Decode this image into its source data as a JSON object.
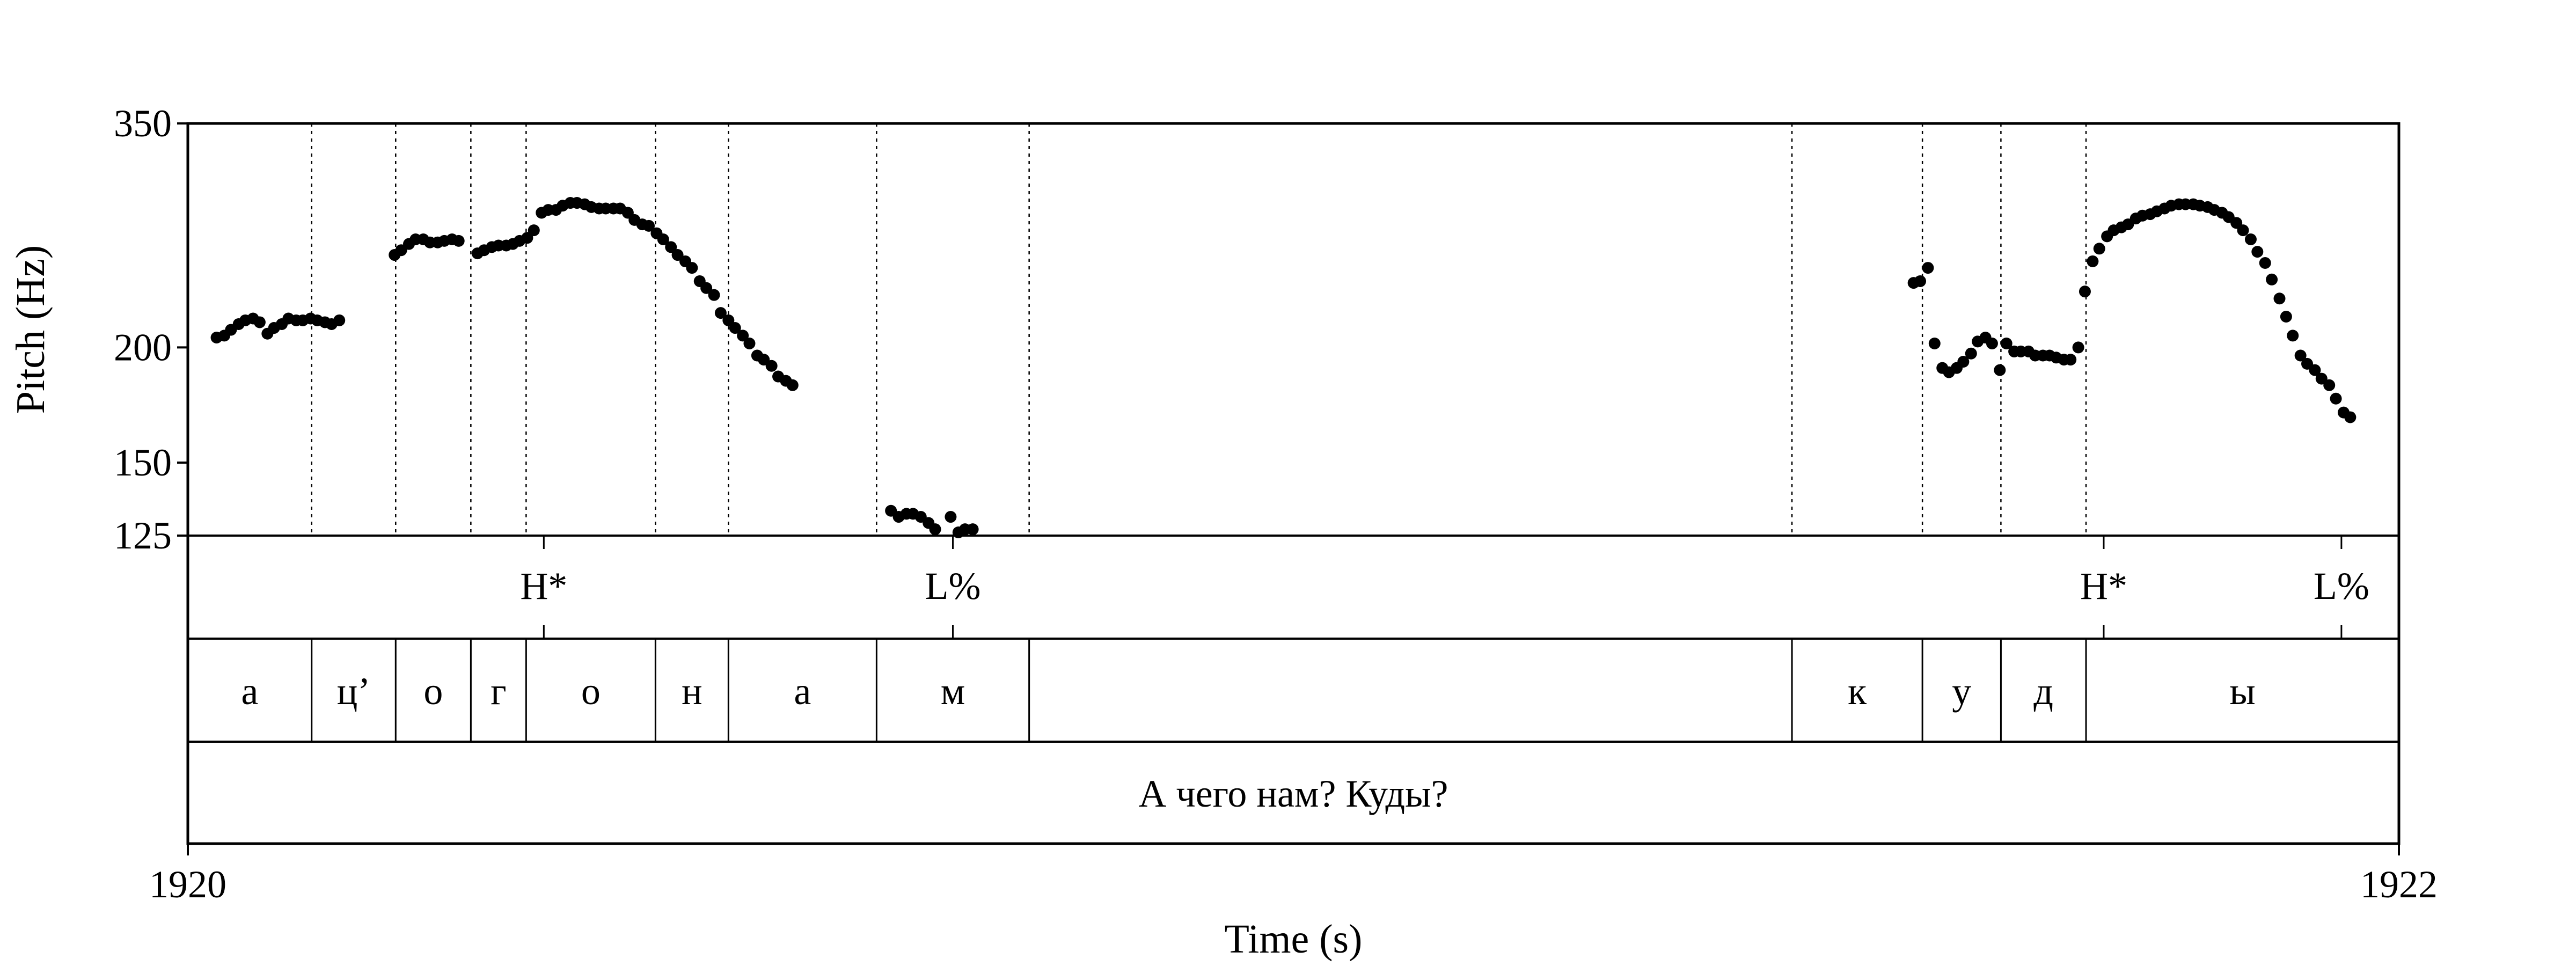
{
  "chart_data": {
    "type": "scatter",
    "xlabel": "Time (s)",
    "ylabel": "Pitch (Hz)",
    "xlim": [
      1920,
      1922
    ],
    "ylim": [
      125,
      350
    ],
    "y_scale": "log",
    "x_ticks": [
      "1920",
      "1922"
    ],
    "y_ticks": [
      125,
      150,
      200,
      350
    ],
    "marker_color": "#000000",
    "pitch_points": [
      [
        1920.026,
        205
      ],
      [
        1920.033,
        206
      ],
      [
        1920.039,
        209
      ],
      [
        1920.046,
        212
      ],
      [
        1920.052,
        214
      ],
      [
        1920.059,
        215
      ],
      [
        1920.065,
        213
      ],
      [
        1920.072,
        207
      ],
      [
        1920.078,
        210
      ],
      [
        1920.085,
        212
      ],
      [
        1920.091,
        215
      ],
      [
        1920.098,
        214
      ],
      [
        1920.104,
        214
      ],
      [
        1920.111,
        215
      ],
      [
        1920.117,
        214
      ],
      [
        1920.124,
        213
      ],
      [
        1920.13,
        212
      ],
      [
        1920.137,
        214
      ],
      [
        1920.187,
        252
      ],
      [
        1920.193,
        255
      ],
      [
        1920.2,
        259
      ],
      [
        1920.206,
        262
      ],
      [
        1920.213,
        262
      ],
      [
        1920.219,
        260
      ],
      [
        1920.226,
        260
      ],
      [
        1920.232,
        261
      ],
      [
        1920.239,
        262
      ],
      [
        1920.245,
        261
      ],
      [
        1920.262,
        253
      ],
      [
        1920.268,
        255
      ],
      [
        1920.275,
        257
      ],
      [
        1920.281,
        258
      ],
      [
        1920.288,
        258
      ],
      [
        1920.294,
        259
      ],
      [
        1920.3,
        261
      ],
      [
        1920.307,
        263
      ],
      [
        1920.313,
        268
      ],
      [
        1920.32,
        280
      ],
      [
        1920.326,
        282
      ],
      [
        1920.333,
        282
      ],
      [
        1920.339,
        285
      ],
      [
        1920.346,
        287
      ],
      [
        1920.352,
        287
      ],
      [
        1920.359,
        286
      ],
      [
        1920.365,
        284
      ],
      [
        1920.372,
        283
      ],
      [
        1920.378,
        283
      ],
      [
        1920.385,
        283
      ],
      [
        1920.391,
        283
      ],
      [
        1920.398,
        280
      ],
      [
        1920.404,
        275
      ],
      [
        1920.411,
        272
      ],
      [
        1920.417,
        271
      ],
      [
        1920.424,
        266
      ],
      [
        1920.43,
        262
      ],
      [
        1920.437,
        257
      ],
      [
        1920.443,
        252
      ],
      [
        1920.45,
        248
      ],
      [
        1920.456,
        244
      ],
      [
        1920.463,
        236
      ],
      [
        1920.469,
        232
      ],
      [
        1920.476,
        228
      ],
      [
        1920.482,
        218
      ],
      [
        1920.489,
        214
      ],
      [
        1920.495,
        210
      ],
      [
        1920.502,
        206
      ],
      [
        1920.508,
        202
      ],
      [
        1920.515,
        196
      ],
      [
        1920.521,
        194
      ],
      [
        1920.528,
        191
      ],
      [
        1920.534,
        186
      ],
      [
        1920.541,
        184
      ],
      [
        1920.547,
        182
      ],
      [
        1920.636,
        133
      ],
      [
        1920.643,
        131
      ],
      [
        1920.65,
        132
      ],
      [
        1920.656,
        132
      ],
      [
        1920.663,
        131
      ],
      [
        1920.67,
        129
      ],
      [
        1920.676,
        127
      ],
      [
        1920.69,
        131
      ],
      [
        1920.697,
        126
      ],
      [
        1920.703,
        127
      ],
      [
        1920.71,
        127
      ],
      [
        1921.561,
        235
      ],
      [
        1921.567,
        236
      ],
      [
        1921.574,
        244
      ],
      [
        1921.58,
        202
      ],
      [
        1921.587,
        190
      ],
      [
        1921.593,
        188
      ],
      [
        1921.6,
        190
      ],
      [
        1921.606,
        193
      ],
      [
        1921.613,
        197
      ],
      [
        1921.619,
        203
      ],
      [
        1921.626,
        205
      ],
      [
        1921.632,
        202
      ],
      [
        1921.639,
        189
      ],
      [
        1921.645,
        202
      ],
      [
        1921.652,
        198
      ],
      [
        1921.658,
        198
      ],
      [
        1921.665,
        198
      ],
      [
        1921.671,
        196
      ],
      [
        1921.678,
        196
      ],
      [
        1921.684,
        196
      ],
      [
        1921.69,
        195
      ],
      [
        1921.697,
        194
      ],
      [
        1921.703,
        194
      ],
      [
        1921.71,
        200
      ],
      [
        1921.716,
        230
      ],
      [
        1921.723,
        248
      ],
      [
        1921.729,
        256
      ],
      [
        1921.736,
        264
      ],
      [
        1921.742,
        268
      ],
      [
        1921.749,
        270
      ],
      [
        1921.755,
        272
      ],
      [
        1921.762,
        276
      ],
      [
        1921.768,
        278
      ],
      [
        1921.775,
        279
      ],
      [
        1921.781,
        281
      ],
      [
        1921.788,
        283
      ],
      [
        1921.794,
        285
      ],
      [
        1921.801,
        286
      ],
      [
        1921.807,
        286
      ],
      [
        1921.814,
        286
      ],
      [
        1921.82,
        285
      ],
      [
        1921.827,
        284
      ],
      [
        1921.833,
        282
      ],
      [
        1921.84,
        280
      ],
      [
        1921.846,
        277
      ],
      [
        1921.853,
        273
      ],
      [
        1921.859,
        268
      ],
      [
        1921.866,
        262
      ],
      [
        1921.872,
        254
      ],
      [
        1921.879,
        247
      ],
      [
        1921.885,
        237
      ],
      [
        1921.892,
        226
      ],
      [
        1921.898,
        216
      ],
      [
        1921.904,
        206
      ],
      [
        1921.911,
        196
      ],
      [
        1921.917,
        192
      ],
      [
        1921.924,
        189
      ],
      [
        1921.93,
        185
      ],
      [
        1921.937,
        182
      ],
      [
        1921.943,
        176
      ],
      [
        1921.95,
        170
      ],
      [
        1921.956,
        168
      ]
    ],
    "segment_boundaries": [
      1920.112,
      1920.188,
      1920.256,
      1920.306,
      1920.423,
      1920.489,
      1920.623,
      1920.761,
      1921.451,
      1921.569,
      1921.64,
      1921.717,
      1922.0
    ],
    "tone_tier": {
      "labels": [
        "H*",
        "L%",
        "H*",
        "L%"
      ],
      "times": [
        1920.322,
        1920.692,
        1921.733,
        1921.948
      ]
    },
    "segment_tier": {
      "labels": [
        "а",
        "ц’",
        "о",
        "г",
        "о",
        "н",
        "а",
        "м",
        "",
        "к",
        "у",
        "д",
        "ы"
      ],
      "intervals": [
        [
          1920.0,
          1920.112
        ],
        [
          1920.112,
          1920.188
        ],
        [
          1920.188,
          1920.256
        ],
        [
          1920.256,
          1920.306
        ],
        [
          1920.306,
          1920.423
        ],
        [
          1920.423,
          1920.489
        ],
        [
          1920.489,
          1920.623
        ],
        [
          1920.623,
          1920.761
        ],
        [
          1920.761,
          1921.451
        ],
        [
          1921.451,
          1921.569
        ],
        [
          1921.569,
          1921.64
        ],
        [
          1921.64,
          1921.717
        ],
        [
          1921.717,
          1922.0
        ]
      ]
    },
    "phrase_tier": {
      "text": "А чего нам? Куды?",
      "interval": [
        1920.0,
        1922.0
      ]
    }
  }
}
